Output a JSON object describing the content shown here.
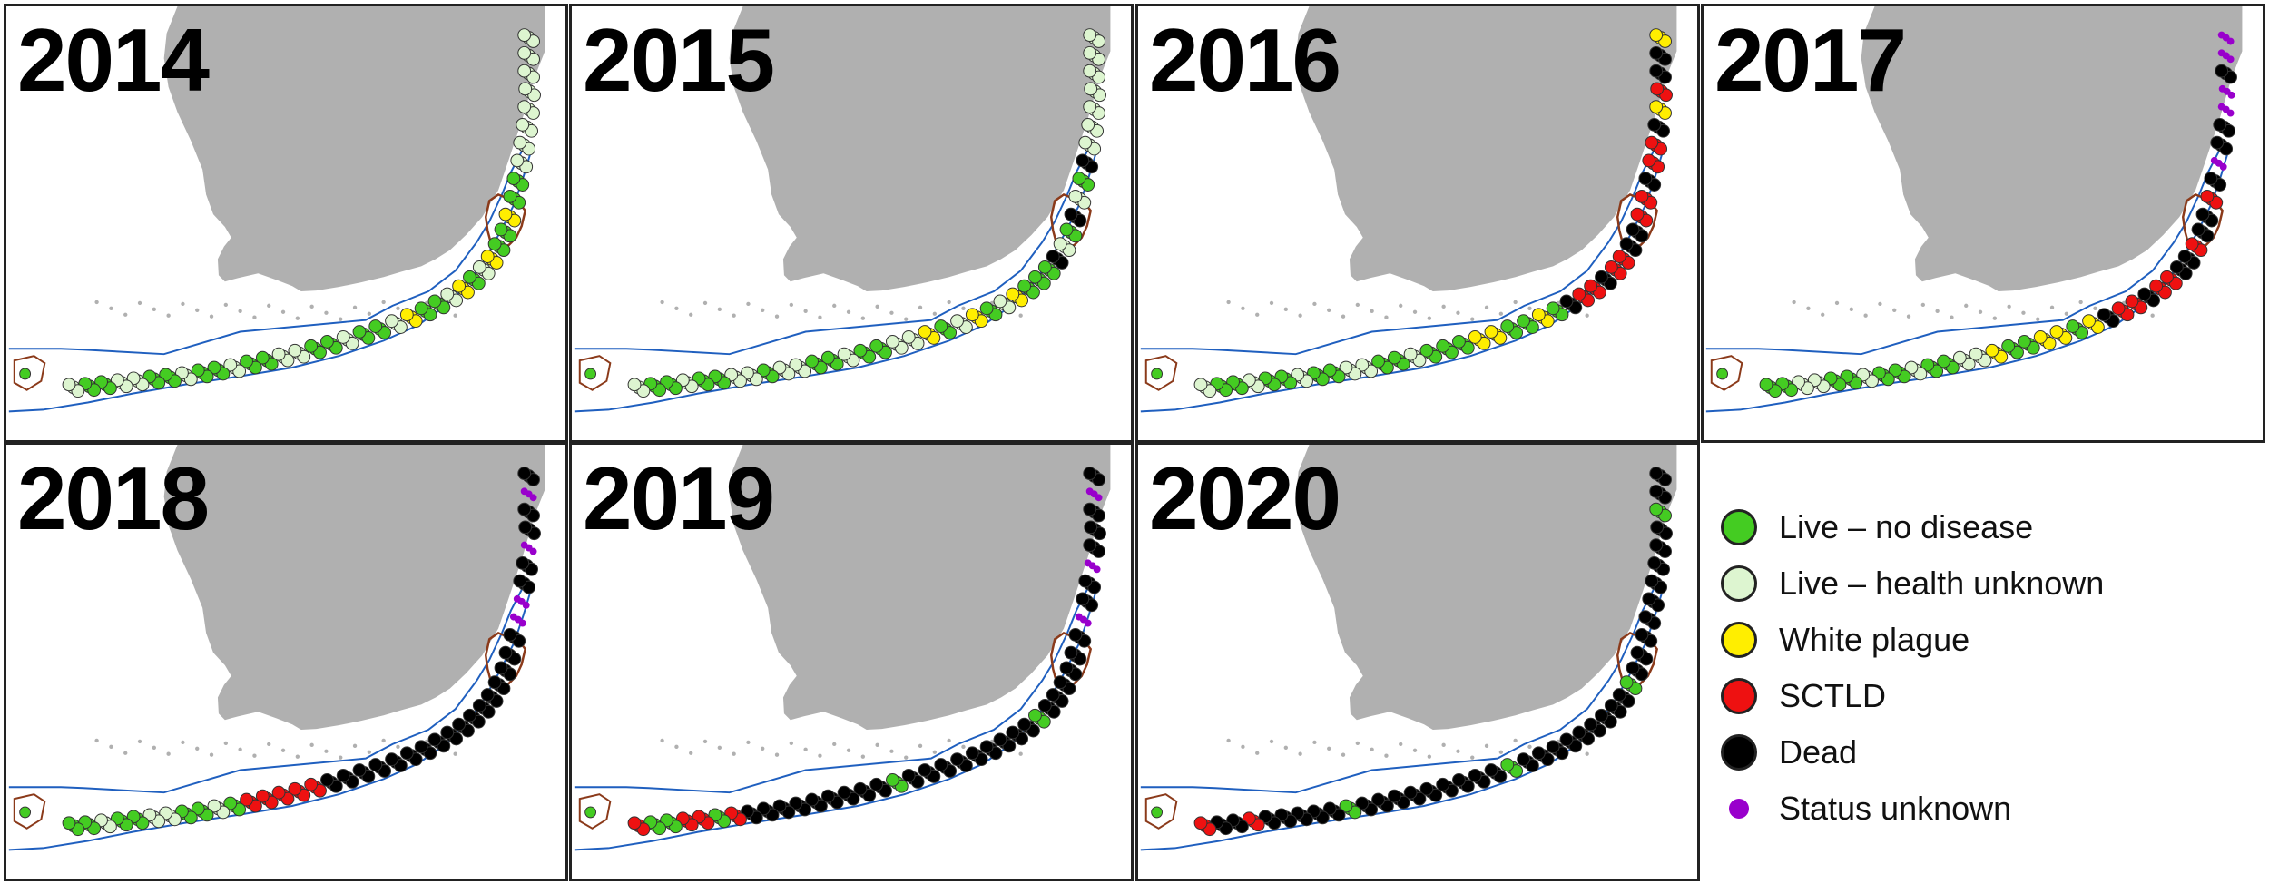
{
  "panels": [
    {
      "year": "2014",
      "phase": 0
    },
    {
      "year": "2015",
      "phase": 1
    },
    {
      "year": "2016",
      "phase": 2
    },
    {
      "year": "2017",
      "phase": 3
    },
    {
      "year": "2018",
      "phase": 4
    },
    {
      "year": "2019",
      "phase": 5
    },
    {
      "year": "2020",
      "phase": 6
    }
  ],
  "legend": [
    {
      "label": "Live – no disease",
      "color": "#44cc22",
      "size": "large"
    },
    {
      "label": "Live – health unknown",
      "color": "#ddf5d0",
      "size": "large"
    },
    {
      "label": "White plague",
      "color": "#ffee00",
      "size": "large"
    },
    {
      "label": "SCTLD",
      "color": "#ee1111",
      "size": "large"
    },
    {
      "label": "Dead",
      "color": "#000000",
      "size": "large"
    },
    {
      "label": "Status unknown",
      "color": "#9900cc",
      "size": "small"
    }
  ],
  "colors": {
    "land": "#b0b0b0",
    "sanctuary_boundary": "#1f5fbf",
    "park_boundary": "#8b3a1a"
  }
}
